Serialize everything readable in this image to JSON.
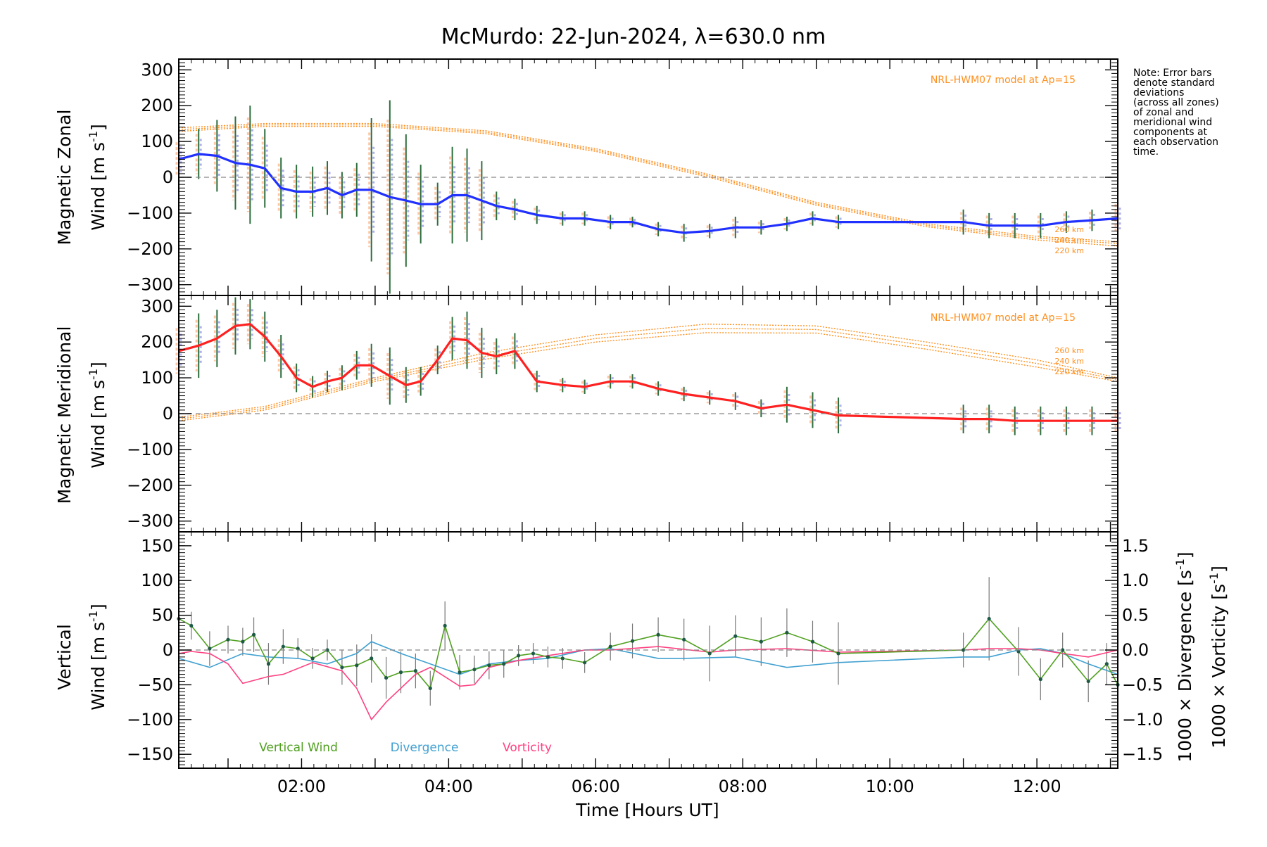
{
  "title": "McMurdo: 22-Jun-2024, λ=630.0 nm",
  "note_lines": [
    "Note: Error bars",
    "denote standard",
    "deviations",
    "(across all zones)",
    "of zonal and",
    "meridional wind",
    "components at",
    "each observation",
    "time."
  ],
  "colors": {
    "zonal": "#2030ff",
    "meridional": "#ff2020",
    "vertical": "#50a020",
    "divergence": "#40a0d0",
    "vorticity": "#ff4080",
    "model": "#ff9020",
    "errorbar": "#2e6e3e",
    "scatter_blue": "#9a9ae8",
    "scatter_orange": "#ffb890"
  },
  "chart_data": [
    {
      "type": "line",
      "panel": "zonal",
      "ylabel_line1": "Magnetic Zonal",
      "ylabel_line2": "Wind [m s",
      "ylabel_sup": "-1",
      "ylabel_close": "]",
      "ylim": [
        -330,
        330
      ],
      "yticks": [
        300,
        200,
        100,
        0,
        -100,
        -200,
        -300
      ],
      "xlim": [
        0.33,
        13.1
      ],
      "model_label": "NRL-HWM07 model at Ap=15",
      "model_alt_labels": [
        "260 km",
        "240 km",
        "220 km"
      ],
      "series": [
        {
          "x": [
            0.33,
            0.6,
            0.85,
            1.1,
            1.3,
            1.5,
            1.72,
            1.93,
            2.15,
            2.35,
            2.55,
            2.75,
            2.95,
            3.2,
            3.42,
            3.62,
            3.85,
            4.05,
            4.25,
            4.45,
            4.65,
            4.9,
            5.2,
            5.55,
            5.85,
            6.2,
            6.5,
            6.85,
            7.2,
            7.55,
            7.9,
            8.25,
            8.6,
            8.95,
            9.3,
            11.0,
            11.35,
            11.7,
            12.05,
            12.4,
            12.75,
            13.1
          ],
          "y": [
            50,
            65,
            60,
            40,
            35,
            25,
            -30,
            -40,
            -40,
            -30,
            -50,
            -35,
            -35,
            -55,
            -65,
            -75,
            -75,
            -50,
            -50,
            -65,
            -80,
            -90,
            -105,
            -115,
            -115,
            -125,
            -125,
            -145,
            -155,
            -150,
            -140,
            -140,
            -130,
            -115,
            -125,
            -125,
            -135,
            -135,
            -135,
            -125,
            -120,
            -115
          ],
          "err": [
            60,
            70,
            100,
            130,
            165,
            110,
            85,
            75,
            70,
            75,
            65,
            75,
            200,
            270,
            185,
            110,
            60,
            135,
            130,
            110,
            40,
            30,
            25,
            20,
            20,
            20,
            15,
            20,
            25,
            20,
            30,
            20,
            20,
            20,
            20,
            35,
            35,
            35,
            35,
            30,
            30,
            50
          ]
        }
      ],
      "model": {
        "hours": [
          0.33,
          1.5,
          3.0,
          4.5,
          6.0,
          7.5,
          9.0,
          10.5,
          12.0,
          13.1
        ],
        "alt_260": [
          138,
          150,
          150,
          130,
          80,
          10,
          -70,
          -130,
          -165,
          -180
        ],
        "alt_240": [
          133,
          146,
          146,
          126,
          76,
          6,
          -74,
          -134,
          -170,
          -185
        ],
        "alt_220": [
          128,
          142,
          142,
          122,
          72,
          2,
          -78,
          -138,
          -175,
          -192
        ]
      }
    },
    {
      "type": "line",
      "panel": "meridional",
      "ylabel_line1": "Magnetic Meridional",
      "ylabel_line2": "Wind [m s",
      "ylabel_sup": "-1",
      "ylabel_close": "]",
      "ylim": [
        -330,
        330
      ],
      "yticks": [
        300,
        200,
        100,
        0,
        -100,
        -200,
        -300
      ],
      "xlim": [
        0.33,
        13.1
      ],
      "model_label": "NRL-HWM07 model at Ap=15",
      "model_alt_labels": [
        "260 km",
        "240 km",
        "220 km"
      ],
      "series": [
        {
          "x": [
            0.33,
            0.6,
            0.85,
            1.1,
            1.3,
            1.5,
            1.72,
            1.93,
            2.15,
            2.35,
            2.55,
            2.75,
            2.95,
            3.2,
            3.42,
            3.62,
            3.85,
            4.05,
            4.25,
            4.45,
            4.65,
            4.9,
            5.2,
            5.55,
            5.85,
            6.2,
            6.5,
            6.85,
            7.2,
            7.55,
            7.9,
            8.25,
            8.6,
            8.95,
            9.3,
            11.0,
            11.35,
            11.7,
            12.05,
            12.4,
            12.75,
            13.1
          ],
          "y": [
            175,
            190,
            210,
            245,
            250,
            215,
            160,
            100,
            75,
            90,
            100,
            135,
            135,
            105,
            80,
            90,
            150,
            210,
            205,
            170,
            160,
            175,
            90,
            80,
            75,
            90,
            90,
            70,
            55,
            45,
            35,
            15,
            25,
            10,
            -5,
            -15,
            -15,
            -20,
            -20,
            -20,
            -20,
            -20
          ],
          "err": [
            80,
            90,
            80,
            80,
            70,
            70,
            60,
            40,
            30,
            30,
            35,
            40,
            60,
            80,
            50,
            40,
            40,
            60,
            80,
            70,
            50,
            50,
            30,
            20,
            20,
            20,
            20,
            20,
            20,
            20,
            25,
            25,
            50,
            50,
            50,
            40,
            40,
            40,
            40,
            40,
            40,
            40
          ]
        }
      ],
      "model": {
        "hours": [
          0.33,
          1.5,
          3.0,
          4.5,
          6.0,
          7.5,
          9.0,
          10.5,
          12.0,
          13.1
        ],
        "alt_260": [
          -10,
          20,
          100,
          170,
          220,
          250,
          245,
          200,
          150,
          100
        ],
        "alt_240": [
          -15,
          15,
          95,
          160,
          210,
          238,
          235,
          190,
          140,
          95
        ],
        "alt_220": [
          -20,
          10,
          90,
          152,
          200,
          226,
          225,
          180,
          130,
          90
        ]
      }
    },
    {
      "type": "line",
      "panel": "vertical",
      "ylabel_line1": "Vertical",
      "ylabel_line2": "Wind [m s",
      "ylabel_sup": "-1",
      "ylabel_close": "]",
      "right_label1": "1000 × Divergence [s",
      "right_label2": "1000 × Vorticity [s",
      "right_sup": "-1",
      "right_close": "]",
      "ylim": [
        -170,
        170
      ],
      "yticks": [
        150,
        100,
        50,
        0,
        -50,
        -100,
        -150
      ],
      "y2lim": [
        -1.7,
        1.7
      ],
      "y2ticks": [
        1.5,
        1.0,
        0.5,
        0.0,
        -0.5,
        -1.0,
        -1.5
      ],
      "y2ticklabels": [
        "1.5",
        "1.0",
        "0.5",
        "0.0",
        "-0.5",
        "-1.0",
        "-1.5"
      ],
      "xlim": [
        0.33,
        13.1
      ],
      "xticks": [
        2,
        4,
        6,
        8,
        10,
        12
      ],
      "xticklabels": [
        "02:00",
        "04:00",
        "06:00",
        "08:00",
        "10:00",
        "12:00"
      ],
      "xlabel": "Time [Hours UT]",
      "legend": [
        "Vertical Wind",
        "Divergence",
        "Vorticity"
      ],
      "series": [
        {
          "name": "Vertical Wind",
          "x": [
            0.33,
            0.5,
            0.75,
            1.0,
            1.2,
            1.35,
            1.55,
            1.75,
            1.95,
            2.15,
            2.35,
            2.55,
            2.75,
            2.95,
            3.15,
            3.35,
            3.55,
            3.75,
            3.95,
            4.15,
            4.35,
            4.55,
            4.75,
            4.95,
            5.15,
            5.35,
            5.55,
            5.85,
            6.2,
            6.5,
            6.85,
            7.2,
            7.55,
            7.9,
            8.25,
            8.6,
            8.95,
            9.3,
            11.0,
            11.35,
            11.75,
            12.05,
            12.35,
            12.7,
            12.95,
            13.1
          ],
          "y": [
            45,
            35,
            2,
            15,
            12,
            22,
            -20,
            5,
            2,
            -12,
            0,
            -25,
            -22,
            -12,
            -40,
            -32,
            -30,
            -55,
            35,
            -32,
            -28,
            -22,
            -20,
            -8,
            -5,
            -10,
            -12,
            -18,
            5,
            13,
            22,
            15,
            -5,
            20,
            12,
            25,
            12,
            -5,
            0,
            45,
            -2,
            -42,
            0,
            -45,
            -20,
            -50
          ],
          "err": [
            10,
            20,
            25,
            20,
            20,
            25,
            30,
            25,
            15,
            15,
            15,
            25,
            30,
            35,
            30,
            30,
            25,
            25,
            35,
            25,
            20,
            20,
            20,
            15,
            15,
            15,
            15,
            15,
            20,
            25,
            25,
            30,
            40,
            30,
            35,
            35,
            30,
            45,
            25,
            60,
            35,
            30,
            25,
            30,
            30,
            30
          ]
        },
        {
          "name": "Divergence",
          "x": [
            0.33,
            0.75,
            1.2,
            1.55,
            1.95,
            2.35,
            2.75,
            2.95,
            3.35,
            3.75,
            4.15,
            4.55,
            4.95,
            5.35,
            5.85,
            6.2,
            6.85,
            7.2,
            7.9,
            8.6,
            9.3,
            11.0,
            11.35,
            11.75,
            12.05,
            12.35,
            12.7,
            13.1
          ],
          "y": [
            -0.12,
            -0.25,
            -0.05,
            -0.1,
            -0.12,
            -0.2,
            -0.05,
            0.12,
            -0.05,
            -0.2,
            -0.35,
            -0.2,
            -0.15,
            -0.12,
            0.0,
            0.02,
            -0.12,
            -0.12,
            -0.1,
            -0.25,
            -0.18,
            -0.1,
            -0.1,
            0.0,
            0.02,
            -0.05,
            -0.2,
            -0.35
          ]
        },
        {
          "name": "Vorticity",
          "x": [
            0.33,
            0.5,
            0.75,
            1.0,
            1.2,
            1.55,
            1.75,
            2.15,
            2.55,
            2.75,
            2.95,
            3.15,
            3.55,
            3.75,
            4.15,
            4.35,
            4.55,
            4.95,
            5.35,
            5.85,
            6.2,
            6.85,
            7.55,
            7.9,
            8.6,
            9.3,
            11.0,
            11.35,
            11.75,
            12.05,
            12.35,
            12.7,
            13.1
          ],
          "y": [
            -0.05,
            -0.02,
            -0.05,
            -0.2,
            -0.48,
            -0.38,
            -0.35,
            -0.18,
            -0.3,
            -0.55,
            -1.0,
            -0.75,
            -0.35,
            -0.25,
            -0.52,
            -0.5,
            -0.25,
            -0.15,
            -0.08,
            0.0,
            0.0,
            0.05,
            -0.03,
            0.0,
            0.02,
            -0.03,
            0.0,
            0.02,
            0.02,
            0.0,
            -0.05,
            -0.1,
            0.0
          ]
        }
      ]
    }
  ]
}
